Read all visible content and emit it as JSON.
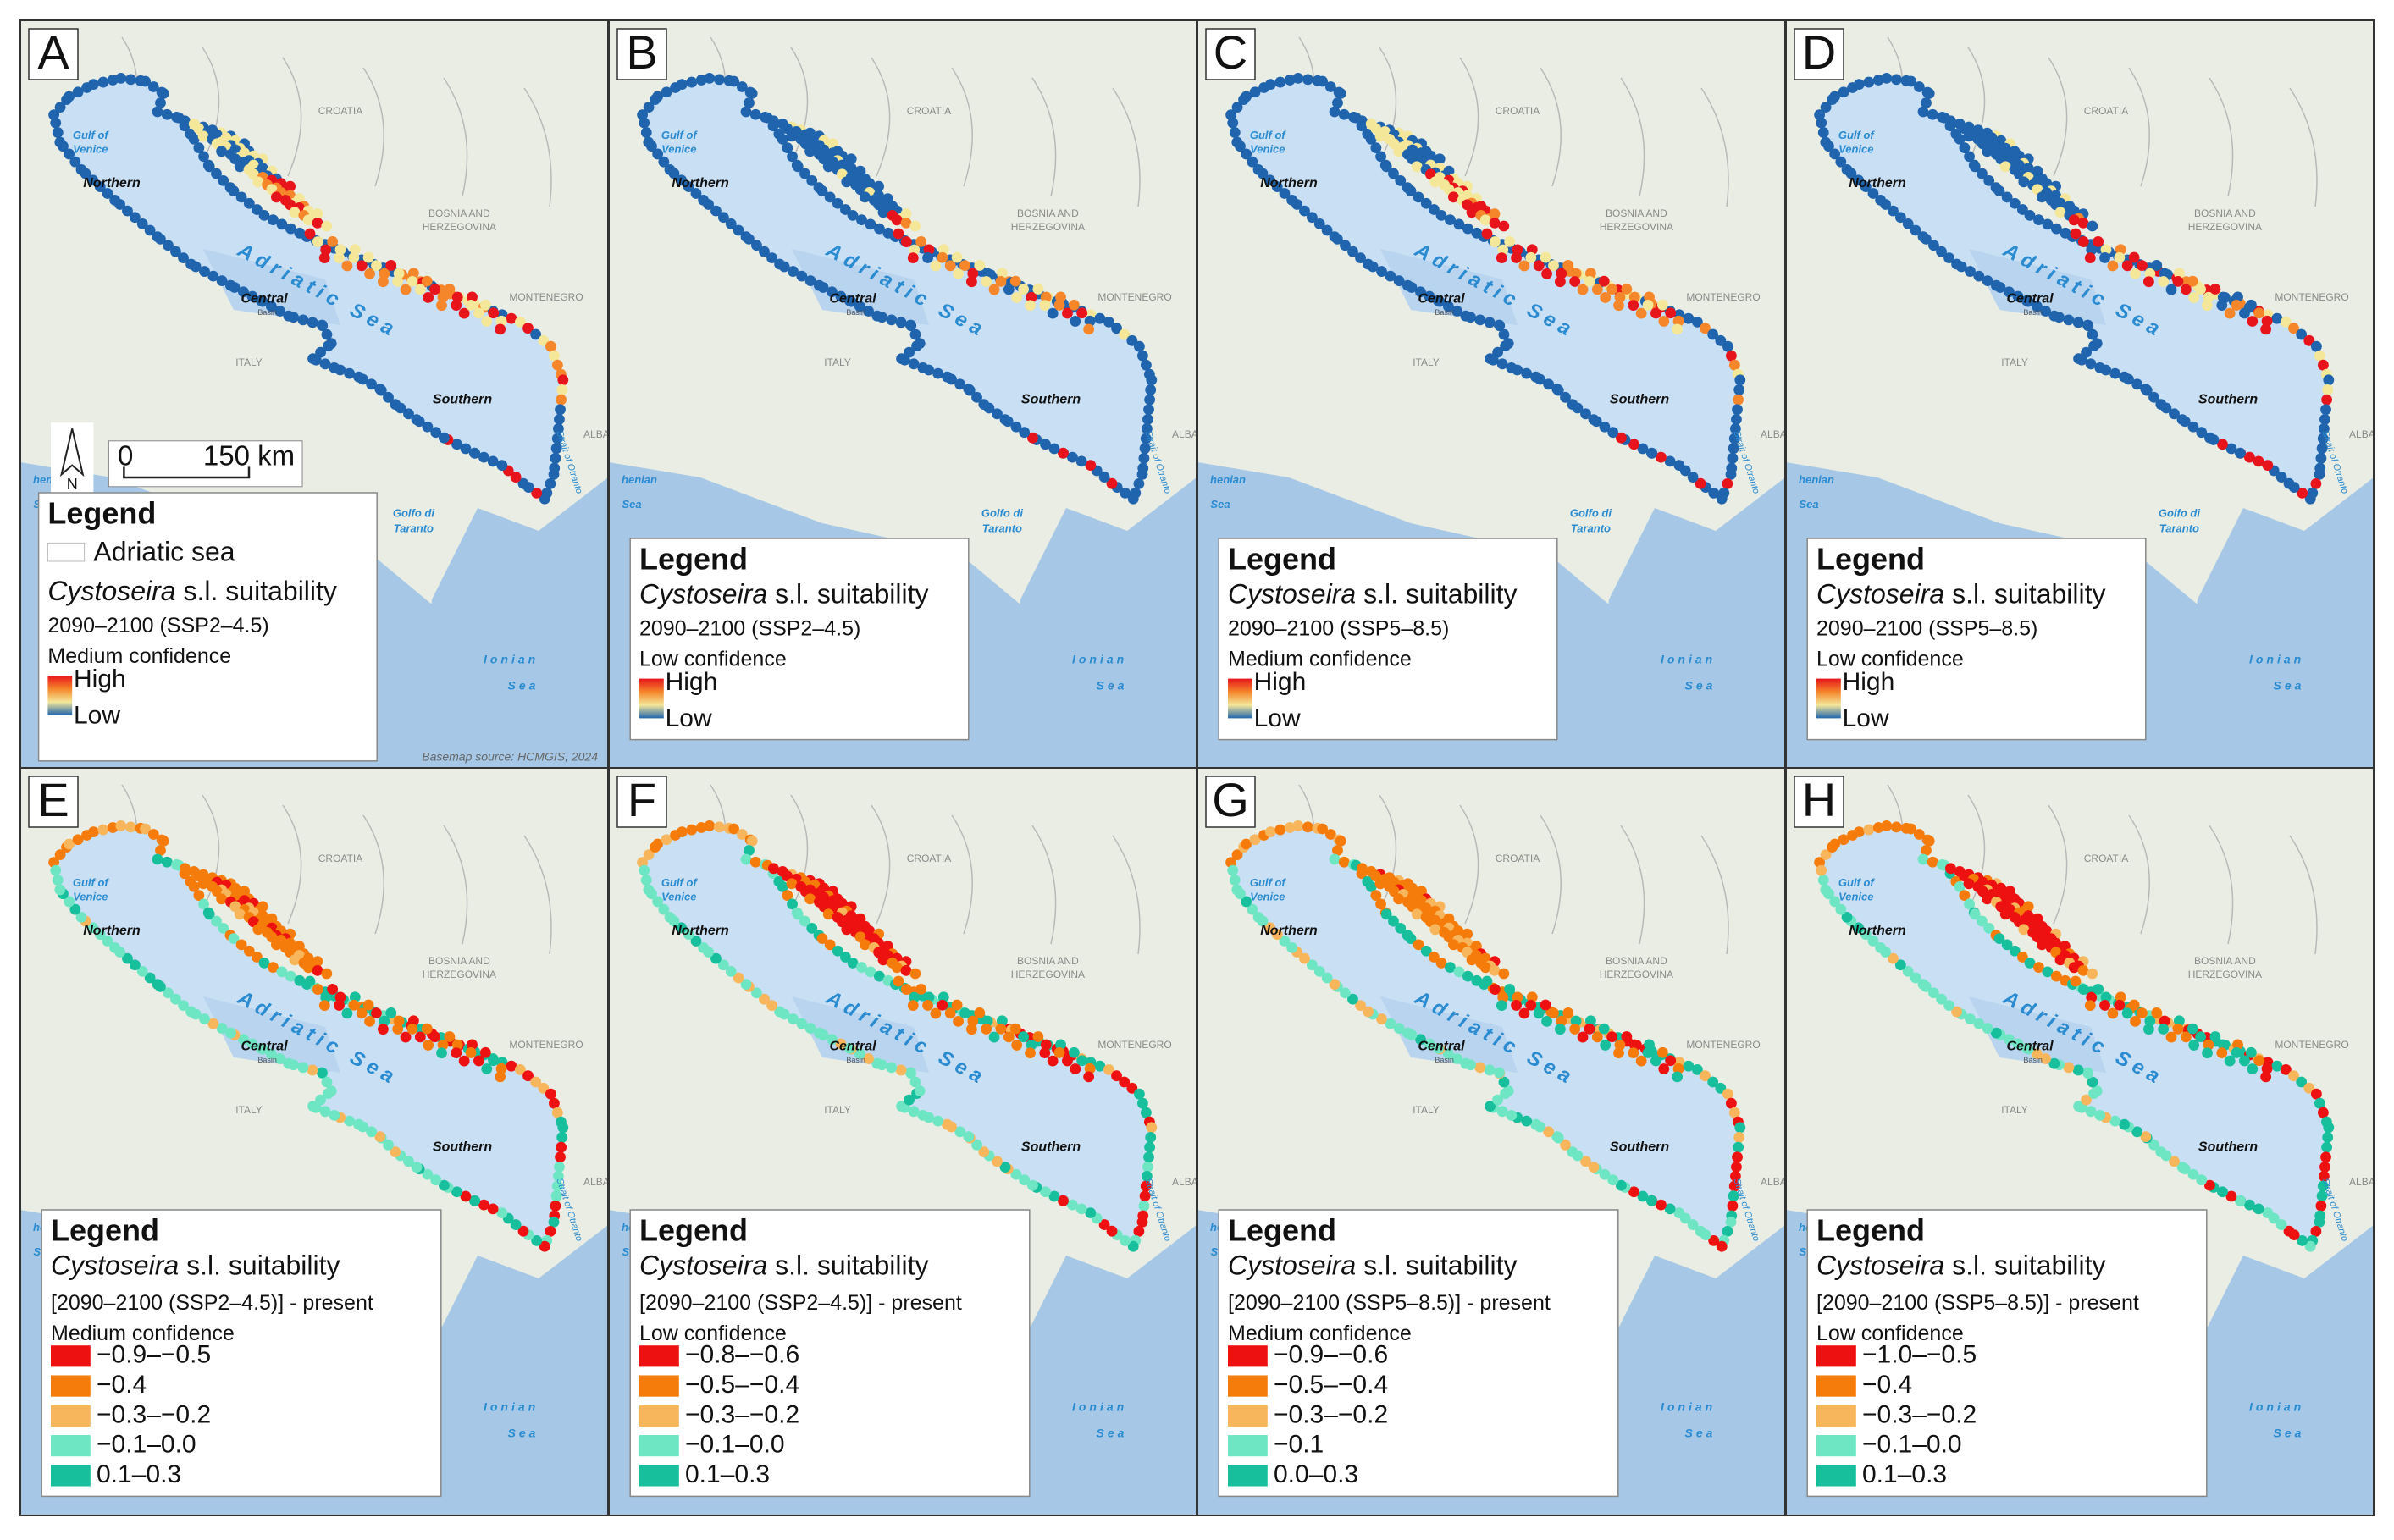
{
  "figure": {
    "map_labels": {
      "gulf": [
        "Gulf of",
        "Venice"
      ],
      "northern": "Northern",
      "central": "Central",
      "southern": "Southern",
      "basin": "Basin",
      "adriatic": "Adriatic Sea",
      "croatia": "CROATIA",
      "bosnia": [
        "BOSNIA AND",
        "HERZEGOVINA"
      ],
      "montenegro": "MONTENEGRO",
      "italy": "ITALY",
      "albania": "ALBA",
      "tyrrhenian": [
        "henian",
        "Sea"
      ],
      "taranto": [
        "Golfo di",
        "Taranto"
      ],
      "ionian": [
        "Ionian",
        "Sea"
      ],
      "otranto": "Strait of Otranto"
    },
    "scale_bar": {
      "north": "N",
      "zero": "0",
      "distance": "150 km"
    },
    "basemap_source": "Basemap source: HCMGIS, 2024",
    "gradient_colors": [
      "#e8141c",
      "#f5862a",
      "#f4e79a",
      "#1f64ad"
    ],
    "panels": [
      {
        "letter": "A",
        "legend": {
          "title": "Legend",
          "sea": "Adriatic sea",
          "species": "Cystoseira",
          "suitability": "s.l. suitability",
          "scenario": "2090–2100 (SSP2–4.5)",
          "confidence": "Medium confidence",
          "high": "High",
          "low": "Low"
        }
      },
      {
        "letter": "B",
        "legend": {
          "title": "Legend",
          "species": "Cystoseira",
          "suitability": "s.l. suitability",
          "scenario": "2090–2100 (SSP2–4.5)",
          "confidence": "Low confidence",
          "high": "High",
          "low": "Low"
        }
      },
      {
        "letter": "C",
        "legend": {
          "title": "Legend",
          "species": "Cystoseira",
          "suitability": "s.l. suitability",
          "scenario": "2090–2100 (SSP5–8.5)",
          "confidence": "Medium confidence",
          "high": "High",
          "low": "Low"
        }
      },
      {
        "letter": "D",
        "legend": {
          "title": "Legend",
          "species": "Cystoseira",
          "suitability": "s.l. suitability",
          "scenario": "2090–2100 (SSP5–8.5)",
          "confidence": "Low confidence",
          "high": "High",
          "low": "Low"
        }
      },
      {
        "letter": "E",
        "legend": {
          "title": "Legend",
          "species": "Cystoseira",
          "suitability": "s.l. suitability",
          "scenario": "[2090–2100 (SSP2–4.5)] - present",
          "confidence": "Medium confidence",
          "classes": [
            {
              "label": "−0.9–−0.5",
              "color": "#ee1111"
            },
            {
              "label": "−0.4",
              "color": "#f57c0b"
            },
            {
              "label": "−0.3–−0.2",
              "color": "#f7b55c"
            },
            {
              "label": "−0.1–0.0",
              "color": "#6ee6c4"
            },
            {
              "label": "0.1–0.3",
              "color": "#17bf9c"
            }
          ]
        }
      },
      {
        "letter": "F",
        "legend": {
          "title": "Legend",
          "species": "Cystoseira",
          "suitability": "s.l. suitability",
          "scenario": "[2090–2100 (SSP2–4.5)] - present",
          "confidence": "Low confidence",
          "classes": [
            {
              "label": "−0.8–−0.6",
              "color": "#ee1111"
            },
            {
              "label": "−0.5–−0.4",
              "color": "#f57c0b"
            },
            {
              "label": "−0.3–−0.2",
              "color": "#f7b55c"
            },
            {
              "label": "−0.1–0.0",
              "color": "#6ee6c4"
            },
            {
              "label": "0.1–0.3",
              "color": "#17bf9c"
            }
          ]
        }
      },
      {
        "letter": "G",
        "legend": {
          "title": "Legend",
          "species": "Cystoseira",
          "suitability": "s.l. suitability",
          "scenario": "[2090–2100 (SSP5–8.5)] - present",
          "confidence": "Medium confidence",
          "classes": [
            {
              "label": "−0.9–−0.6",
              "color": "#ee1111"
            },
            {
              "label": "−0.5–−0.4",
              "color": "#f57c0b"
            },
            {
              "label": "−0.3–−0.2",
              "color": "#f7b55c"
            },
            {
              "label": "−0.1",
              "color": "#6ee6c4"
            },
            {
              "label": "0.0–0.3",
              "color": "#17bf9c"
            }
          ]
        }
      },
      {
        "letter": "H",
        "legend": {
          "title": "Legend",
          "species": "Cystoseira",
          "suitability": "s.l. suitability",
          "scenario": "[2090–2100 (SSP5–8.5)] - present",
          "confidence": "Low confidence",
          "classes": [
            {
              "label": "−1.0–−0.5",
              "color": "#ee1111"
            },
            {
              "label": "−0.4",
              "color": "#f57c0b"
            },
            {
              "label": "−0.3–−0.2",
              "color": "#f7b55c"
            },
            {
              "label": "−0.1–0.0",
              "color": "#6ee6c4"
            },
            {
              "label": "0.1–0.3",
              "color": "#17bf9c"
            }
          ]
        }
      }
    ]
  }
}
